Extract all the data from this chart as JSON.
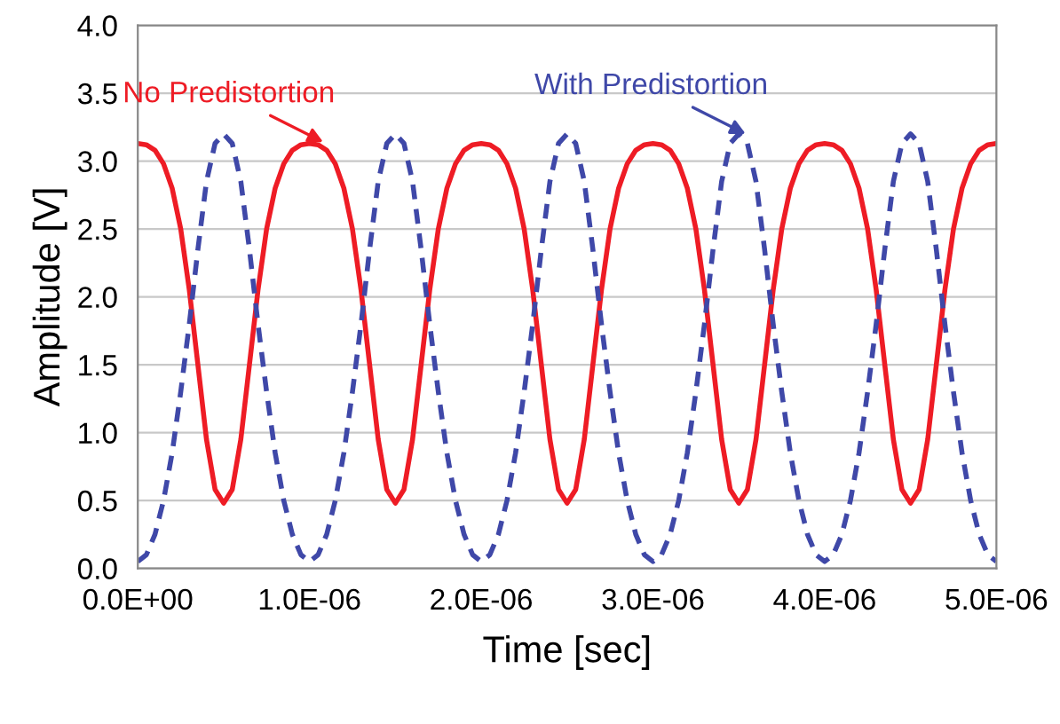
{
  "chart_data": {
    "type": "line",
    "xlabel": "Time [sec]",
    "ylabel": "Amplitude [V]",
    "x": [
      0,
      5e-08,
      1e-07,
      1.5e-07,
      2e-07,
      2.5e-07,
      3e-07,
      3.5e-07,
      4e-07,
      4.5e-07,
      5e-07,
      5.5e-07,
      6e-07,
      6.5e-07,
      7e-07,
      7.5e-07,
      8e-07,
      8.5e-07,
      9e-07,
      9.5e-07,
      1e-06,
      1.05e-06,
      1.1e-06,
      1.15e-06,
      1.2e-06,
      1.25e-06,
      1.3e-06,
      1.35e-06,
      1.4e-06,
      1.45e-06,
      1.5e-06,
      1.55e-06,
      1.6e-06,
      1.65e-06,
      1.7e-06,
      1.75e-06,
      1.8e-06,
      1.85e-06,
      1.9e-06,
      1.95e-06,
      2e-06,
      2.05e-06,
      2.1e-06,
      2.15e-06,
      2.2e-06,
      2.25e-06,
      2.3e-06,
      2.35e-06,
      2.4e-06,
      2.45e-06,
      2.5e-06,
      2.55e-06,
      2.6e-06,
      2.65e-06,
      2.7e-06,
      2.75e-06,
      2.8e-06,
      2.85e-06,
      2.9e-06,
      2.95e-06,
      3e-06,
      3.05e-06,
      3.1e-06,
      3.15e-06,
      3.2e-06,
      3.25e-06,
      3.3e-06,
      3.35e-06,
      3.4e-06,
      3.45e-06,
      3.5e-06,
      3.55e-06,
      3.6e-06,
      3.65e-06,
      3.7e-06,
      3.75e-06,
      3.8e-06,
      3.85e-06,
      3.9e-06,
      3.95e-06,
      4e-06,
      4.05e-06,
      4.1e-06,
      4.15e-06,
      4.2e-06,
      4.25e-06,
      4.3e-06,
      4.35e-06,
      4.4e-06,
      4.45e-06,
      4.5e-06,
      4.55e-06,
      4.6e-06,
      4.65e-06,
      4.7e-06,
      4.75e-06,
      4.8e-06,
      4.85e-06,
      4.9e-06,
      4.95e-06,
      5e-06
    ],
    "series": [
      {
        "color": "#ee1c25",
        "line_style": "solid",
        "values": [
          3.13,
          3.12,
          3.08,
          2.98,
          2.8,
          2.5,
          2.05,
          1.5,
          0.95,
          0.58,
          0.48,
          0.58,
          0.95,
          1.5,
          2.05,
          2.5,
          2.8,
          2.98,
          3.08,
          3.12,
          3.13,
          3.12,
          3.08,
          2.98,
          2.8,
          2.5,
          2.05,
          1.5,
          0.95,
          0.58,
          0.48,
          0.58,
          0.95,
          1.5,
          2.05,
          2.5,
          2.8,
          2.98,
          3.08,
          3.12,
          3.13,
          3.12,
          3.08,
          2.98,
          2.8,
          2.5,
          2.05,
          1.5,
          0.95,
          0.58,
          0.48,
          0.58,
          0.95,
          1.5,
          2.05,
          2.5,
          2.8,
          2.98,
          3.08,
          3.12,
          3.13,
          3.12,
          3.08,
          2.98,
          2.8,
          2.5,
          2.05,
          1.5,
          0.95,
          0.58,
          0.48,
          0.58,
          0.95,
          1.5,
          2.05,
          2.5,
          2.8,
          2.98,
          3.08,
          3.12,
          3.13,
          3.12,
          3.08,
          2.98,
          2.8,
          2.5,
          2.05,
          1.5,
          0.95,
          0.58,
          0.48,
          0.58,
          0.95,
          1.5,
          2.05,
          2.5,
          2.8,
          2.98,
          3.08,
          3.12,
          3.13
        ]
      },
      {
        "color": "#3f48a8",
        "line_style": "dashed",
        "values": [
          0.05,
          0.1,
          0.25,
          0.5,
          0.85,
          1.3,
          1.8,
          2.35,
          2.85,
          3.13,
          3.2,
          3.13,
          2.85,
          2.35,
          1.8,
          1.3,
          0.85,
          0.5,
          0.25,
          0.1,
          0.05,
          0.1,
          0.25,
          0.5,
          0.85,
          1.3,
          1.8,
          2.35,
          2.85,
          3.13,
          3.2,
          3.13,
          2.85,
          2.35,
          1.8,
          1.3,
          0.85,
          0.5,
          0.25,
          0.1,
          0.05,
          0.1,
          0.25,
          0.5,
          0.85,
          1.3,
          1.8,
          2.35,
          2.85,
          3.13,
          3.2,
          3.13,
          2.85,
          2.35,
          1.8,
          1.3,
          0.85,
          0.5,
          0.25,
          0.1,
          0.05,
          0.1,
          0.25,
          0.5,
          0.85,
          1.3,
          1.8,
          2.35,
          2.85,
          3.13,
          3.2,
          3.13,
          2.85,
          2.35,
          1.8,
          1.3,
          0.85,
          0.5,
          0.25,
          0.1,
          0.05,
          0.1,
          0.25,
          0.5,
          0.85,
          1.3,
          1.8,
          2.35,
          2.85,
          3.13,
          3.2,
          3.13,
          2.85,
          2.35,
          1.8,
          1.3,
          0.85,
          0.5,
          0.25,
          0.1,
          0.05
        ]
      }
    ],
    "annotations": [
      {
        "text": "No Predistortion",
        "x": 1.08e-06,
        "y": 3.14
      },
      {
        "text": "With Predistortion",
        "x": 3.54e-06,
        "y": 3.2
      }
    ],
    "xlim": [
      0,
      5e-06
    ],
    "xticks": [
      {
        "value": 0,
        "label": "0.0E+00"
      },
      {
        "value": 1e-06,
        "label": "1.0E-06"
      },
      {
        "value": 2e-06,
        "label": "2.0E-06"
      },
      {
        "value": 3e-06,
        "label": "3.0E-06"
      },
      {
        "value": 4e-06,
        "label": "4.0E-06"
      },
      {
        "value": 5e-06,
        "label": "5.0E-06"
      }
    ],
    "ylim": [
      0,
      4
    ],
    "yticks": [
      {
        "value": 0,
        "label": "0.0"
      },
      {
        "value": 0.5,
        "label": "0.5"
      },
      {
        "value": 1,
        "label": "1.0"
      },
      {
        "value": 1.5,
        "label": "1.5"
      },
      {
        "value": 2,
        "label": "2.0"
      },
      {
        "value": 2.5,
        "label": "2.5"
      },
      {
        "value": 3,
        "label": "3.0"
      },
      {
        "value": 3.5,
        "label": "3.5"
      },
      {
        "value": 4,
        "label": "4.0"
      }
    ],
    "grid": "y"
  }
}
